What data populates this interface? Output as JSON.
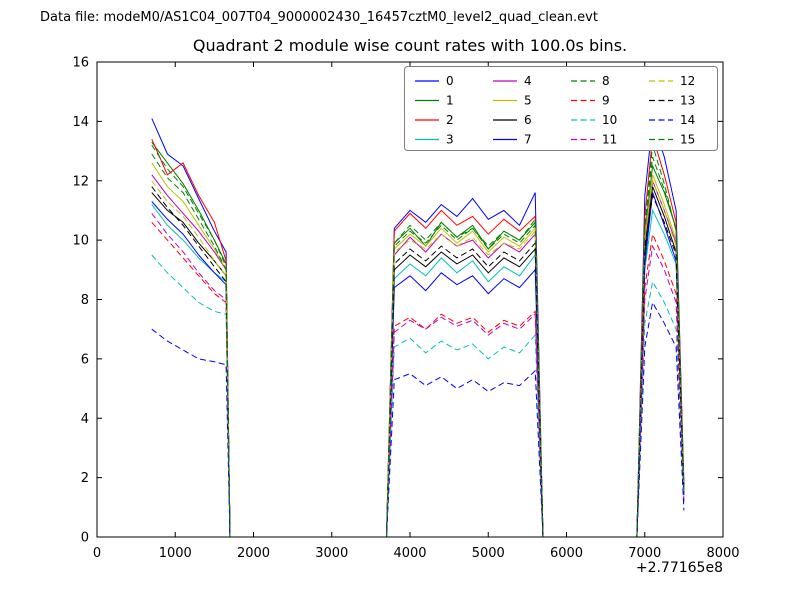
{
  "figure": {
    "data_file_label": "Data file: modeM0/AS1C04_007T04_9000002430_16457cztM0_level2_quad_clean.evt",
    "title": "Quadrant 2 module wise count rates with 100.0s bins.",
    "offset_label": "+2.77165e8"
  },
  "chart_data": {
    "type": "line",
    "title": "Quadrant 2 module wise count rates with 100.0s bins.",
    "xlabel": "",
    "ylabel": "",
    "xlim": [
      0,
      8000
    ],
    "ylim": [
      0,
      16
    ],
    "xticks": [
      0,
      1000,
      2000,
      3000,
      4000,
      5000,
      6000,
      7000,
      8000
    ],
    "yticks": [
      0,
      2,
      4,
      6,
      8,
      10,
      12,
      14,
      16
    ],
    "x_offset": "+2.77165e8",
    "grid": false,
    "legend_position": "upper center, 4 columns",
    "x": [
      700,
      900,
      1100,
      1300,
      1500,
      1650,
      1700,
      3700,
      3800,
      4000,
      4200,
      4400,
      4600,
      4800,
      5000,
      5200,
      5400,
      5600,
      5700,
      6900,
      7000,
      7100,
      7250,
      7400,
      7500
    ],
    "series": [
      {
        "name": "0",
        "color": "#0000ff",
        "dash": "solid",
        "values": [
          14.1,
          12.9,
          12.5,
          11.4,
          10.3,
          9.6,
          0,
          0,
          10.4,
          11.0,
          10.6,
          11.2,
          10.8,
          11.4,
          10.7,
          11.0,
          10.5,
          11.6,
          0,
          0,
          11.5,
          14.0,
          12.8,
          11.0,
          1.8
        ]
      },
      {
        "name": "1",
        "color": "#008000",
        "dash": "solid",
        "values": [
          13.3,
          12.6,
          11.9,
          11.0,
          10.0,
          9.2,
          0,
          0,
          9.9,
          10.4,
          9.8,
          10.6,
          10.1,
          10.5,
          9.7,
          10.3,
          10.0,
          10.6,
          0,
          0,
          10.2,
          12.5,
          11.6,
          10.4,
          1.6
        ]
      },
      {
        "name": "2",
        "color": "#ff0000",
        "dash": "solid",
        "values": [
          13.4,
          12.2,
          12.6,
          11.5,
          10.6,
          9.3,
          0,
          0,
          10.3,
          10.9,
          10.4,
          11.0,
          10.5,
          10.8,
          10.2,
          10.7,
          10.3,
          10.8,
          0,
          0,
          10.8,
          13.5,
          12.2,
          10.6,
          1.7
        ]
      },
      {
        "name": "3",
        "color": "#00bfbf",
        "dash": "solid",
        "values": [
          11.2,
          10.5,
          10.0,
          9.4,
          8.9,
          8.6,
          0,
          0,
          8.7,
          9.2,
          8.8,
          9.4,
          8.9,
          9.3,
          8.6,
          9.1,
          8.8,
          9.5,
          0,
          0,
          9.0,
          11.0,
          10.2,
          9.2,
          1.5
        ]
      },
      {
        "name": "4",
        "color": "#bf00bf",
        "dash": "solid",
        "values": [
          12.2,
          11.5,
          10.9,
          10.3,
          9.6,
          9.0,
          0,
          0,
          9.5,
          10.1,
          9.6,
          10.2,
          9.8,
          10.0,
          9.4,
          9.9,
          9.6,
          10.2,
          0,
          0,
          9.8,
          12.0,
          11.0,
          9.9,
          1.6
        ]
      },
      {
        "name": "5",
        "color": "#bfbf00",
        "dash": "solid",
        "values": [
          12.6,
          11.8,
          11.3,
          10.5,
          9.7,
          9.0,
          0,
          0,
          9.7,
          10.2,
          9.8,
          10.4,
          9.9,
          10.3,
          9.6,
          10.1,
          9.8,
          10.4,
          0,
          0,
          10.0,
          12.2,
          11.2,
          10.0,
          1.6
        ]
      },
      {
        "name": "6",
        "color": "#000000",
        "dash": "solid",
        "values": [
          11.6,
          11.0,
          10.6,
          9.9,
          9.3,
          8.8,
          0,
          0,
          9.0,
          9.5,
          9.1,
          9.6,
          9.2,
          9.5,
          8.9,
          9.4,
          9.1,
          9.7,
          0,
          0,
          9.5,
          11.8,
          10.8,
          9.6,
          1.5
        ]
      },
      {
        "name": "7",
        "color": "#0000ff",
        "dash": "solid",
        "values": [
          11.3,
          10.7,
          10.2,
          9.5,
          8.9,
          8.5,
          0,
          0,
          8.4,
          8.8,
          8.3,
          8.9,
          8.5,
          8.8,
          8.2,
          8.7,
          8.4,
          9.0,
          0,
          0,
          9.2,
          11.6,
          10.5,
          9.3,
          1.4
        ]
      },
      {
        "name": "8",
        "color": "#008000",
        "dash": "dashed",
        "values": [
          12.9,
          12.1,
          11.6,
          10.7,
          9.8,
          9.0,
          0,
          0,
          9.8,
          10.3,
          9.9,
          10.5,
          10.0,
          10.4,
          9.7,
          10.2,
          9.9,
          10.5,
          0,
          0,
          10.4,
          13.2,
          11.9,
          10.3,
          1.6
        ]
      },
      {
        "name": "9",
        "color": "#ff0000",
        "dash": "dashed",
        "values": [
          10.6,
          10.0,
          9.4,
          8.8,
          8.2,
          7.9,
          0,
          0,
          7.1,
          7.4,
          7.0,
          7.5,
          7.2,
          7.4,
          6.9,
          7.3,
          7.1,
          7.6,
          0,
          0,
          8.4,
          10.2,
          9.3,
          8.2,
          1.3
        ]
      },
      {
        "name": "10",
        "color": "#00bfbf",
        "dash": "dashed",
        "values": [
          9.5,
          8.9,
          8.4,
          7.9,
          7.6,
          7.5,
          0,
          0,
          6.4,
          6.7,
          6.2,
          6.6,
          6.3,
          6.5,
          6.0,
          6.4,
          6.2,
          6.8,
          0,
          0,
          7.2,
          8.6,
          7.9,
          7.0,
          1.1
        ]
      },
      {
        "name": "11",
        "color": "#bf00bf",
        "dash": "dashed",
        "values": [
          10.9,
          10.2,
          9.6,
          8.9,
          8.3,
          8.0,
          0,
          0,
          6.9,
          7.3,
          7.0,
          7.4,
          7.1,
          7.3,
          6.8,
          7.2,
          7.0,
          7.5,
          0,
          0,
          8.0,
          9.8,
          9.0,
          7.9,
          1.2
        ]
      },
      {
        "name": "12",
        "color": "#bfbf00",
        "dash": "dashed",
        "values": [
          12.0,
          11.3,
          10.8,
          10.1,
          9.3,
          8.8,
          0,
          0,
          9.6,
          10.0,
          9.7,
          10.2,
          9.8,
          10.1,
          9.5,
          9.9,
          9.7,
          10.3,
          0,
          0,
          10.1,
          12.0,
          11.0,
          9.8,
          1.5
        ]
      },
      {
        "name": "13",
        "color": "#000000",
        "dash": "dashed",
        "values": [
          11.8,
          11.1,
          10.5,
          9.8,
          9.1,
          8.6,
          0,
          0,
          9.2,
          9.7,
          9.3,
          9.8,
          9.4,
          9.7,
          9.1,
          9.6,
          9.3,
          9.9,
          0,
          0,
          9.8,
          11.5,
          10.6,
          9.5,
          1.5
        ]
      },
      {
        "name": "14",
        "color": "#0000ff",
        "dash": "dashed",
        "values": [
          7.0,
          6.6,
          6.3,
          6.0,
          5.9,
          5.8,
          0,
          0,
          5.3,
          5.5,
          5.1,
          5.4,
          5.0,
          5.3,
          4.9,
          5.2,
          5.1,
          5.6,
          0,
          0,
          6.4,
          7.9,
          7.2,
          6.4,
          0.9
        ]
      },
      {
        "name": "15",
        "color": "#008000",
        "dash": "dashed",
        "values": [
          13.2,
          12.4,
          11.8,
          10.9,
          10.0,
          9.1,
          0,
          0,
          9.9,
          10.5,
          10.0,
          10.6,
          10.1,
          10.4,
          9.8,
          10.3,
          10.0,
          10.7,
          0,
          0,
          10.5,
          12.8,
          11.7,
          10.4,
          1.6
        ]
      }
    ]
  }
}
